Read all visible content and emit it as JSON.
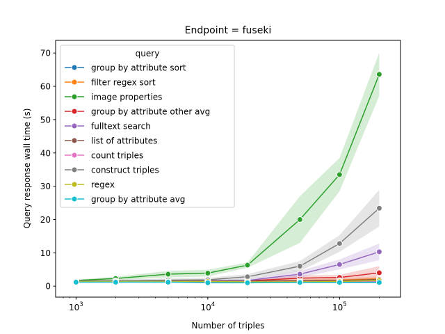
{
  "chart_data": {
    "type": "line",
    "title": "Endpoint = fuseki",
    "xlabel": "Number of triples",
    "ylabel": "Query response wall time (s)",
    "xscale": "log",
    "xlim": [
      700,
      290000
    ],
    "ylim": [
      -3.3,
      73.8
    ],
    "x_tick_labels": [
      {
        "base": "10",
        "exp": "3",
        "value": 1000
      },
      {
        "base": "10",
        "exp": "4",
        "value": 10000
      },
      {
        "base": "10",
        "exp": "5",
        "value": 100000
      }
    ],
    "y_ticks": [
      "0",
      "10",
      "20",
      "30",
      "40",
      "50",
      "60",
      "70"
    ],
    "legend": {
      "title": "query",
      "position": "top-left"
    },
    "x": [
      1000,
      2000,
      5000,
      10000,
      20000,
      50000,
      100000,
      200000
    ],
    "series": [
      {
        "name": "group by attribute sort",
        "color": "#1f77b4",
        "values": [
          1.3,
          1.3,
          1.3,
          1.3,
          1.2,
          1.3,
          1.3,
          1.4
        ],
        "band": null
      },
      {
        "name": "filter regex sort",
        "color": "#ff7f0e",
        "values": [
          1.4,
          1.4,
          1.4,
          1.4,
          1.4,
          1.6,
          1.8,
          2.2
        ],
        "band": [
          0.4,
          0.4,
          0.4,
          0.4,
          0.4,
          0.5,
          0.6,
          0.8
        ]
      },
      {
        "name": "image properties",
        "color": "#2ca02c",
        "values": [
          1.7,
          2.3,
          3.6,
          3.9,
          6.3,
          20.0,
          33.5,
          63.6
        ],
        "band": [
          0.3,
          0.5,
          1.0,
          1.0,
          0.8,
          7.0,
          5.0,
          6.5
        ]
      },
      {
        "name": "group by attribute other avg",
        "color": "#d62728",
        "values": [
          1.5,
          1.5,
          1.5,
          1.5,
          1.6,
          2.4,
          2.6,
          4.0
        ],
        "band": [
          0.3,
          0.3,
          0.3,
          0.3,
          0.3,
          0.8,
          0.8,
          2.0
        ]
      },
      {
        "name": "fulltext search",
        "color": "#9467bd",
        "values": [
          1.5,
          1.5,
          1.5,
          1.6,
          1.7,
          3.6,
          6.5,
          10.3
        ],
        "band": [
          0.3,
          0.3,
          0.3,
          0.3,
          0.4,
          1.0,
          1.5,
          2.5
        ]
      },
      {
        "name": "list of attributes",
        "color": "#8c564b",
        "values": [
          1.5,
          1.5,
          1.5,
          1.5,
          1.5,
          1.6,
          1.7,
          2.0
        ],
        "band": [
          0.3,
          0.3,
          0.3,
          0.3,
          0.3,
          0.3,
          0.4,
          0.5
        ]
      },
      {
        "name": "count triples",
        "color": "#e377c2",
        "values": [
          1.3,
          1.3,
          1.3,
          1.3,
          1.3,
          1.3,
          1.4,
          1.5
        ],
        "band": null
      },
      {
        "name": "construct triples",
        "color": "#7f7f7f",
        "values": [
          1.5,
          1.6,
          1.8,
          1.9,
          2.8,
          6.0,
          12.8,
          23.4
        ],
        "band": [
          0.3,
          0.3,
          0.5,
          0.6,
          0.8,
          1.5,
          2.5,
          5.5
        ]
      },
      {
        "name": "regex",
        "color": "#bcbd22",
        "values": [
          1.4,
          1.4,
          1.4,
          1.4,
          1.3,
          1.3,
          1.4,
          1.7
        ],
        "band": [
          0.3,
          0.3,
          0.3,
          0.3,
          0.3,
          0.3,
          0.3,
          0.5
        ]
      },
      {
        "name": "group by attribute avg",
        "color": "#17becf",
        "values": [
          1.2,
          1.2,
          1.2,
          1.0,
          1.0,
          1.1,
          1.1,
          1.1
        ],
        "band": null
      }
    ]
  }
}
